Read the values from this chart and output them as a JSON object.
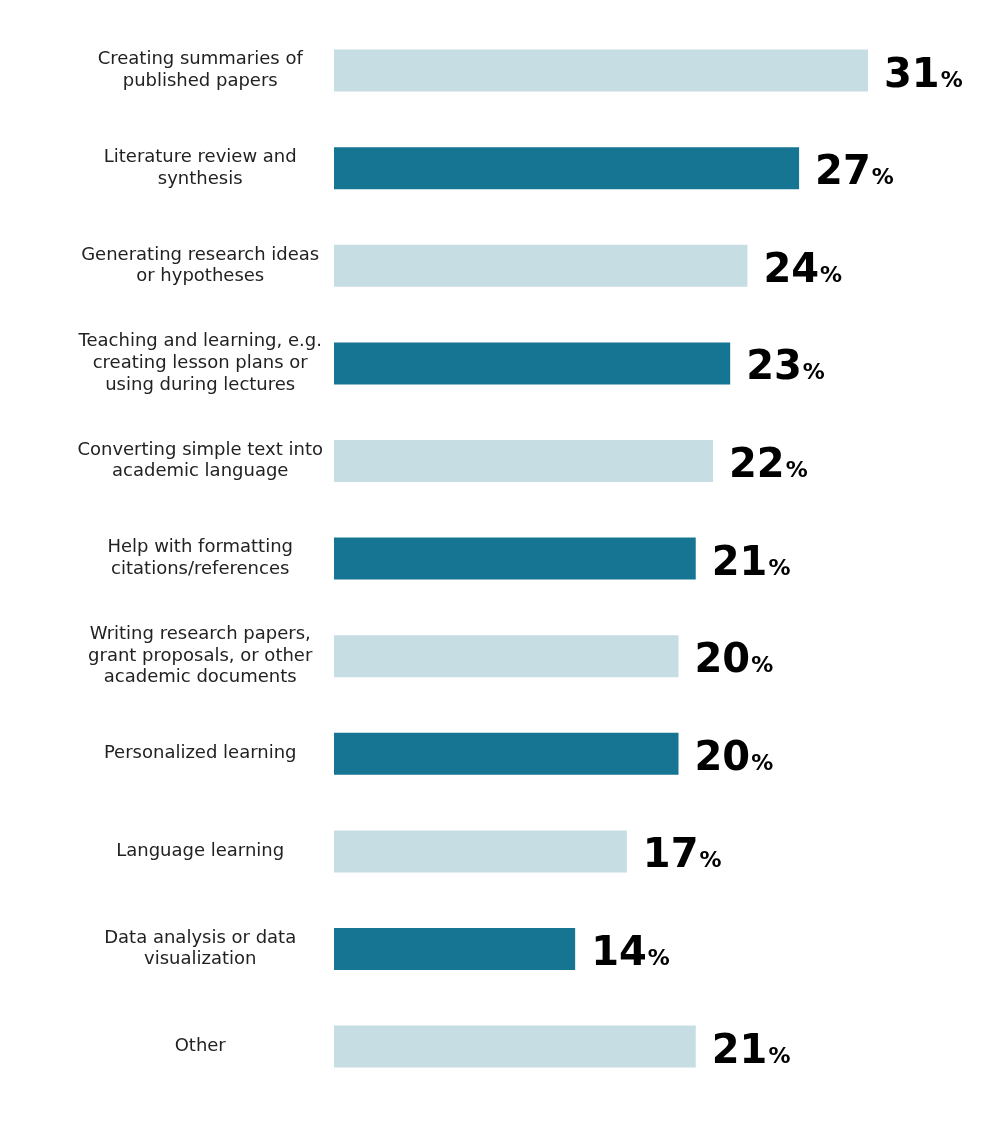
{
  "chart_data": {
    "type": "bar",
    "orientation": "horizontal",
    "categories": [
      "Creating summaries of published papers",
      "Literature review and synthesis",
      "Generating research ideas or hypotheses",
      "Teaching and learning, e.g. creating lesson plans or using during lectures",
      "Converting simple text into academic language",
      "Help with formatting citations/references",
      "Writing research papers, grant proposals, or other academic documents",
      "Personalized learning",
      "Language learning",
      "Data analysis or data visualization",
      "Other"
    ],
    "values": [
      31,
      27,
      24,
      23,
      22,
      21,
      20,
      20,
      17,
      14,
      21
    ],
    "colors": [
      "#c5dde3",
      "#167593",
      "#c5dde3",
      "#167593",
      "#c5dde3",
      "#167593",
      "#c5dde3",
      "#167593",
      "#c5dde3",
      "#167593",
      "#c5dde3"
    ],
    "value_labels": [
      "31%",
      "27%",
      "24%",
      "23%",
      "22%",
      "21%",
      "20%",
      "20%",
      "17%",
      "14%",
      "21%"
    ],
    "legend": false
  }
}
